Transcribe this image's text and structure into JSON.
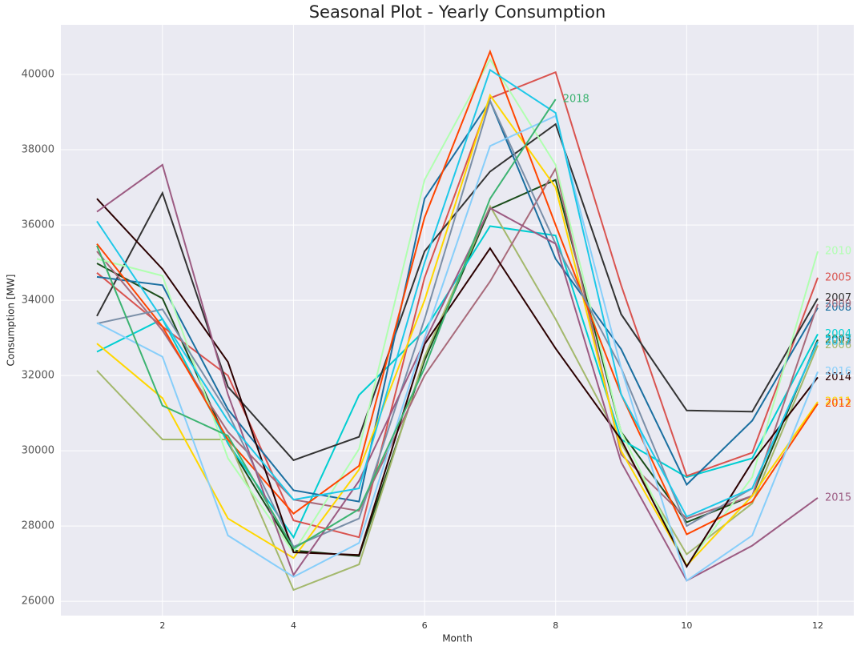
{
  "chart_data": {
    "type": "line",
    "title": "Seasonal Plot - Yearly Consumption",
    "x_label": "Month",
    "y_label": "Consumption [MW]",
    "x": [
      1,
      2,
      3,
      4,
      5,
      6,
      7,
      8,
      9,
      10,
      11,
      12
    ],
    "xlim": [
      0.45,
      12.55
    ],
    "xticks": [
      2,
      4,
      6,
      8,
      10,
      12
    ],
    "ylim": [
      25620,
      41320
    ],
    "yticks": [
      26000,
      28000,
      30000,
      32000,
      34000,
      36000,
      38000,
      40000
    ],
    "grid": true,
    "background": "#eaeaf2",
    "series": [
      {
        "name": "2003",
        "color": "#1b4d1b",
        "values": [
          34980,
          34050,
          30200,
          27350,
          27200,
          32400,
          36430,
          37200,
          30500,
          28100,
          28800,
          32950
        ]
      },
      {
        "name": "2004",
        "color": "#00ced1",
        "values": [
          32630,
          33500,
          30200,
          27700,
          31480,
          33200,
          35970,
          35720,
          30300,
          29300,
          29800,
          33100
        ]
      },
      {
        "name": "2005",
        "color": "#d9534f",
        "values": [
          34730,
          33300,
          32000,
          28150,
          27700,
          34600,
          39370,
          40060,
          34400,
          29330,
          29950,
          34600
        ]
      },
      {
        "name": "2006",
        "color": "#a3b86c",
        "values": [
          32130,
          30300,
          30300,
          26300,
          26980,
          32500,
          36500,
          33500,
          30200,
          27250,
          28600,
          32800
        ]
      },
      {
        "name": "2007",
        "color": "#333333",
        "values": [
          33580,
          36850,
          31700,
          29750,
          30370,
          35300,
          37420,
          38680,
          33630,
          31070,
          31040,
          34050
        ]
      },
      {
        "name": "2008",
        "color": "#1a6fa0",
        "values": [
          34620,
          34400,
          31100,
          28950,
          28650,
          36700,
          39300,
          35100,
          32700,
          29100,
          30800,
          33800
        ]
      },
      {
        "name": "2009",
        "color": "#a86a7a",
        "values": [
          35300,
          33200,
          30500,
          28700,
          28400,
          32000,
          34500,
          37500,
          29900,
          28200,
          28800,
          33900
        ]
      },
      {
        "name": "2010",
        "color": "#b0ffb0",
        "values": [
          35100,
          34650,
          29800,
          27300,
          30050,
          37200,
          40400,
          37600,
          30500,
          26950,
          29300,
          35300
        ]
      },
      {
        "name": "2011",
        "color": "#ffd700",
        "values": [
          32850,
          31400,
          28200,
          27150,
          29500,
          34000,
          39450,
          37000,
          30000,
          26950,
          28800,
          31300
        ]
      },
      {
        "name": "2012",
        "color": "#ff4500",
        "values": [
          35500,
          33300,
          30300,
          28330,
          29600,
          36200,
          40610,
          36000,
          31500,
          27780,
          28650,
          31250
        ]
      },
      {
        "name": "2013",
        "color": "#7b8fa8",
        "values": [
          33380,
          33760,
          31000,
          27450,
          28200,
          33500,
          39300,
          35500,
          32200,
          28000,
          29000,
          32900
        ]
      },
      {
        "name": "2014",
        "color": "#2b0000",
        "values": [
          36700,
          34830,
          32360,
          27300,
          27230,
          32830,
          35380,
          32720,
          30300,
          26920,
          29700,
          31950
        ]
      },
      {
        "name": "2015",
        "color": "#9c5b82",
        "values": [
          36350,
          37600,
          31500,
          26700,
          29200,
          32900,
          36450,
          35500,
          29700,
          26550,
          27480,
          28750
        ]
      },
      {
        "name": "2016",
        "color": "#87cefa",
        "values": [
          33400,
          32500,
          27750,
          26650,
          27550,
          33000,
          38100,
          38900,
          32200,
          26550,
          27750,
          32100
        ]
      },
      {
        "name": "2017",
        "color": "#1ec8e8",
        "values": [
          36100,
          33500,
          30800,
          28700,
          29000,
          35000,
          40120,
          38980,
          31500,
          28250,
          29000,
          32900
        ]
      },
      {
        "name": "2018",
        "color": "#3cb371",
        "values": [
          35450,
          31200,
          30400,
          27400,
          28450,
          32200,
          36700,
          39340,
          null,
          null,
          null,
          null
        ]
      }
    ]
  }
}
